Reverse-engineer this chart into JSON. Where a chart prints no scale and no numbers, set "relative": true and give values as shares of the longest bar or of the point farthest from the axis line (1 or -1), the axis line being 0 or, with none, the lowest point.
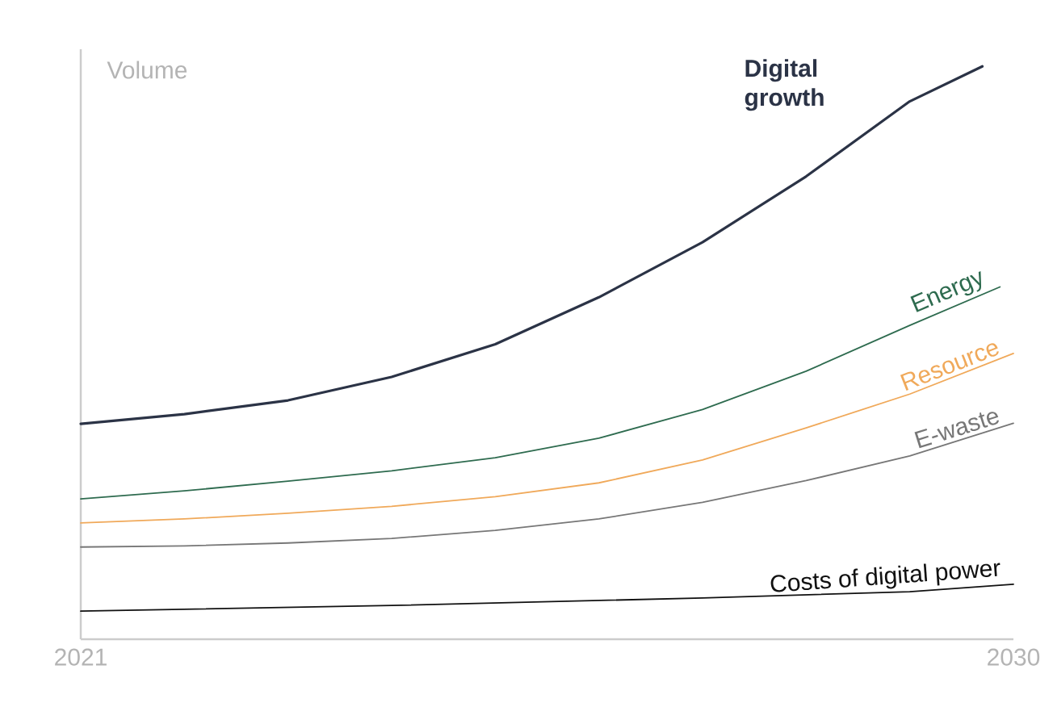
{
  "chart_data": {
    "type": "line",
    "ylabel": "Volume",
    "relative": true,
    "xlim": [
      2021,
      2030
    ],
    "xticks": [
      2021,
      2030
    ],
    "grid": false,
    "legend": false,
    "marker": "none",
    "line_style": "solid",
    "series": [
      {
        "name": "Digital growth",
        "color": "#2b3346",
        "x": [
          2021,
          2022,
          2023,
          2024,
          2025,
          2026,
          2027,
          2028,
          2029,
          2029.7
        ],
        "values": [
          0.376,
          0.393,
          0.417,
          0.458,
          0.515,
          0.597,
          0.693,
          0.808,
          0.939,
          1
        ]
      },
      {
        "name": "Energy",
        "color": "#2e6b4f",
        "x": [
          2021,
          2022,
          2023,
          2024,
          2025,
          2026,
          2027,
          2028,
          2029,
          2029.87
        ],
        "values": [
          0.245,
          0.259,
          0.276,
          0.294,
          0.317,
          0.351,
          0.401,
          0.468,
          0.548,
          0.615
        ]
      },
      {
        "name": "Resource",
        "color": "#f0a95a",
        "x": [
          2021,
          2022,
          2023,
          2024,
          2025,
          2026,
          2027,
          2028,
          2029,
          2030
        ],
        "values": [
          0.203,
          0.21,
          0.22,
          0.232,
          0.249,
          0.273,
          0.313,
          0.369,
          0.428,
          0.499
        ]
      },
      {
        "name": "E-waste",
        "color": "#777777",
        "x": [
          2021,
          2022,
          2023,
          2024,
          2025,
          2026,
          2027,
          2028,
          2029,
          2030
        ],
        "values": [
          0.161,
          0.163,
          0.168,
          0.176,
          0.19,
          0.21,
          0.239,
          0.277,
          0.32,
          0.377
        ]
      },
      {
        "name": "Costs of digital power",
        "color": "#111111",
        "x": [
          2021,
          2024,
          2027,
          2029,
          2030
        ],
        "values": [
          0.049,
          0.059,
          0.072,
          0.083,
          0.096
        ]
      }
    ]
  }
}
